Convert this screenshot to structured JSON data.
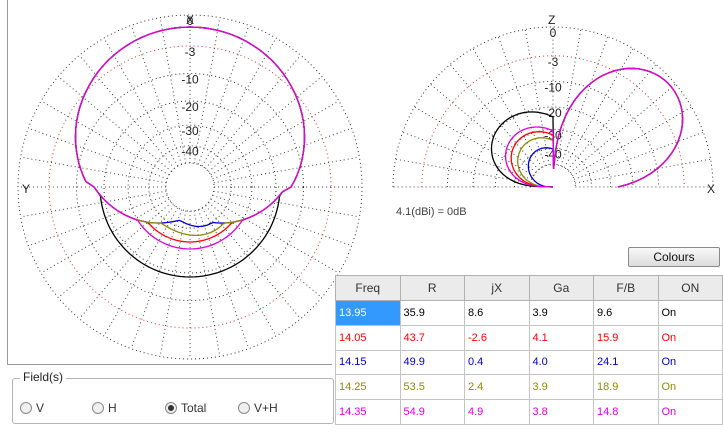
{
  "plot_left": {
    "top_label": "X",
    "left_label": "Y",
    "ring_labels": [
      "0",
      "-3",
      "-10",
      "-20",
      "-30",
      "-40"
    ]
  },
  "plot_right": {
    "top_label": "Z",
    "right_label": "X",
    "ring_labels": [
      "0",
      "-3",
      "-10",
      "-20",
      "-30",
      "-40"
    ],
    "gain_text": "4.1(dBi) = 0dB"
  },
  "buttons": {
    "colours": "Colours"
  },
  "table": {
    "headers": [
      "Freq",
      "R",
      "jX",
      "Ga",
      "F/B",
      "ON"
    ],
    "rows": [
      {
        "color": "#000000",
        "cells": [
          "13.95",
          "35.9",
          "8.6",
          "3.9",
          "9.6",
          "On"
        ]
      },
      {
        "color": "#ff0000",
        "cells": [
          "14.05",
          "43.7",
          "-2.6",
          "4.1",
          "15.9",
          "On"
        ]
      },
      {
        "color": "#0000cc",
        "cells": [
          "14.15",
          "49.9",
          "0.4",
          "4.0",
          "24.1",
          "On"
        ]
      },
      {
        "color": "#8c8c00",
        "cells": [
          "14.25",
          "53.5",
          "2.4",
          "3.9",
          "18.9",
          "On"
        ]
      },
      {
        "color": "#e000e0",
        "cells": [
          "14.35",
          "54.9",
          "4.9",
          "3.8",
          "14.8",
          "On"
        ]
      }
    ],
    "selected_cell": "13.95"
  },
  "fields": {
    "legend": "Field(s)",
    "options": [
      "V",
      "H",
      "Total",
      "V+H"
    ],
    "selected": "Total"
  }
}
